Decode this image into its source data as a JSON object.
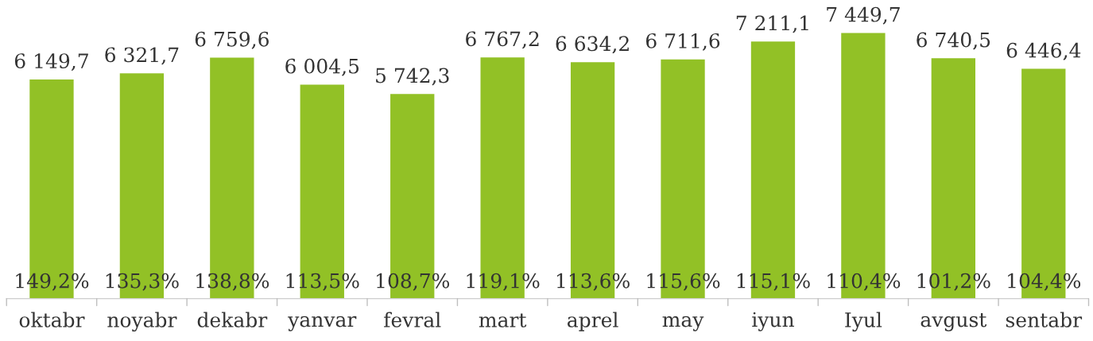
{
  "chart_data": {
    "type": "bar",
    "categories": [
      "oktabr",
      "noyabr",
      "dekabr",
      "yanvar",
      "fevral",
      "mart",
      "aprel",
      "may",
      "iyun",
      "Iyul",
      "avgust",
      "sentabr"
    ],
    "values": [
      6149.7,
      6321.7,
      6759.6,
      6004.5,
      5742.3,
      6767.2,
      6634.2,
      6711.6,
      7211.1,
      7449.7,
      6740.5,
      6446.4
    ],
    "value_labels": [
      "6 149,7",
      "6 321,7",
      "6 759,6",
      "6 004,5",
      "5 742,3",
      "6 767,2",
      "6 634,2",
      "6 711,6",
      "7 211,1",
      "7 449,7",
      "6 740,5",
      "6 446,4"
    ],
    "color": "#92c126",
    "grid": false,
    "legend": false,
    "annotations": [
      {
        "text": "149,2%",
        "x": "oktabr",
        "y": 0
      },
      {
        "text": "135,3%",
        "x": "noyabr",
        "y": 0
      },
      {
        "text": "138,8%",
        "x": "dekabr",
        "y": 0
      },
      {
        "text": "113,5%",
        "x": "yanvar",
        "y": 0
      },
      {
        "text": "108,7%",
        "x": "fevral",
        "y": 0
      },
      {
        "text": "119,1%",
        "x": "mart",
        "y": 0
      },
      {
        "text": "113,6%",
        "x": "aprel",
        "y": 0
      },
      {
        "text": "115,6%",
        "x": "may",
        "y": 0
      },
      {
        "text": "115,1%",
        "x": "iyun",
        "y": 0
      },
      {
        "text": "110,4%",
        "x": "Iyul",
        "y": 0
      },
      {
        "text": "101,2%",
        "x": "avgust",
        "y": 0
      },
      {
        "text": "104,4%",
        "x": "sentabr",
        "y": 0
      }
    ]
  }
}
